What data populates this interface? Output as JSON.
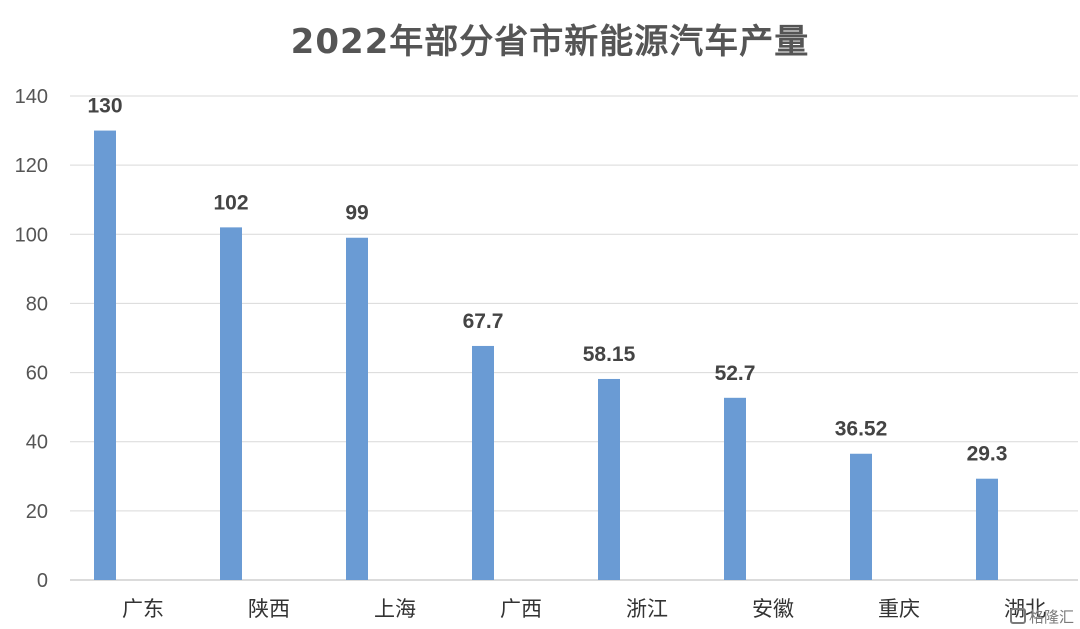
{
  "chart_data": {
    "type": "bar",
    "title": "2022年部分省市新能源汽车产量",
    "categories": [
      "广东",
      "陕西",
      "上海",
      "广西",
      "浙江",
      "安徽",
      "重庆",
      "湖北"
    ],
    "values": [
      130,
      102,
      99,
      67.7,
      58.15,
      52.7,
      36.52,
      29.3
    ],
    "value_labels": [
      "130",
      "102",
      "99",
      "67.7",
      "58.15",
      "52.7",
      "36.52",
      "29.3"
    ],
    "xlabel": "",
    "ylabel": "",
    "ylim": [
      0,
      140
    ],
    "yticks": [
      0,
      20,
      40,
      60,
      80,
      100,
      120,
      140
    ],
    "grid": true,
    "bar_color": "#6a9bd4",
    "grid_color": "#d9d9d9"
  },
  "watermark": {
    "text": "格隆汇",
    "icon": "logo-icon"
  }
}
